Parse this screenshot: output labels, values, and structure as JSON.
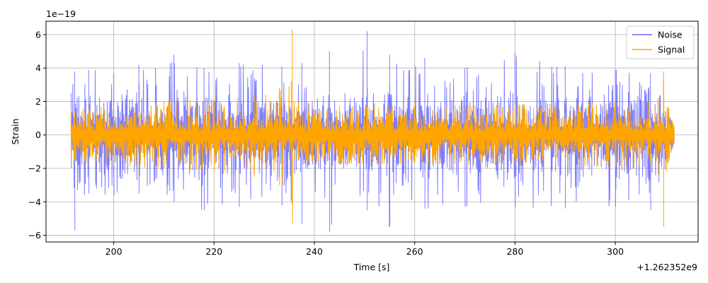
{
  "chart_data": {
    "type": "line",
    "title": "",
    "xlabel": "Time [s]",
    "ylabel": "Strain",
    "x_offset_text": "+1.262352e9",
    "y_exponent_text": "1e−19",
    "xlim": [
      186.5,
      316.5
    ],
    "ylim": [
      -6.4,
      6.8
    ],
    "x_range": [
      191.5,
      311.7
    ],
    "xticks": [
      200,
      220,
      240,
      260,
      280,
      300
    ],
    "xtick_labels": [
      "200",
      "220",
      "240",
      "260",
      "280",
      "300"
    ],
    "yticks": [
      -6,
      -4,
      -2,
      0,
      2,
      4,
      6
    ],
    "ytick_labels": [
      "−6",
      "−4",
      "−2",
      "0",
      "2",
      "4",
      "6"
    ],
    "grid": true,
    "legend_position": "top-right",
    "colors": {
      "noise": "#6666ff",
      "signal": "#ffa500",
      "grid": "#b0b0b0"
    },
    "series": [
      {
        "name": "Noise",
        "color": "#6666ff",
        "opacity": 0.85,
        "typical_amplitude": 1.4,
        "envelope": [
          {
            "x": 191.5,
            "max": 2.5,
            "min": -2.0
          },
          {
            "x": 192.2,
            "max": 3.8,
            "min": -5.7
          },
          {
            "x": 195.0,
            "max": 3.9,
            "min": -3.5
          },
          {
            "x": 200.0,
            "max": 3.7,
            "min": -3.6
          },
          {
            "x": 205.0,
            "max": 4.2,
            "min": -3.5
          },
          {
            "x": 212.0,
            "max": 4.8,
            "min": -4.0
          },
          {
            "x": 218.0,
            "max": 4.0,
            "min": -4.5
          },
          {
            "x": 225.0,
            "max": 4.3,
            "min": -4.3
          },
          {
            "x": 233.5,
            "max": 4.1,
            "min": -4.2
          },
          {
            "x": 237.5,
            "max": 4.3,
            "min": -5.3
          },
          {
            "x": 243.0,
            "max": 5.0,
            "min": -5.8
          },
          {
            "x": 250.5,
            "max": 6.2,
            "min": -4.5
          },
          {
            "x": 255.0,
            "max": 4.8,
            "min": -5.5
          },
          {
            "x": 262.0,
            "max": 4.6,
            "min": -4.4
          },
          {
            "x": 270.0,
            "max": 4.0,
            "min": -4.3
          },
          {
            "x": 280.0,
            "max": 4.9,
            "min": -4.3
          },
          {
            "x": 290.0,
            "max": 4.1,
            "min": -4.4
          },
          {
            "x": 300.0,
            "max": 3.9,
            "min": -4.3
          },
          {
            "x": 307.0,
            "max": 3.7,
            "min": -4.5
          },
          {
            "x": 311.7,
            "max": 0.5,
            "min": -0.5
          }
        ]
      },
      {
        "name": "Signal",
        "color": "#ffa500",
        "typical_amplitude": 0.9,
        "envelope": [
          {
            "x": 191.5,
            "max": 1.5,
            "min": -1.5
          },
          {
            "x": 200.0,
            "max": 1.7,
            "min": -1.8
          },
          {
            "x": 210.0,
            "max": 2.0,
            "min": -2.0
          },
          {
            "x": 220.0,
            "max": 2.1,
            "min": -2.2
          },
          {
            "x": 228.0,
            "max": 2.4,
            "min": -2.5
          },
          {
            "x": 233.0,
            "max": 2.8,
            "min": -3.0
          },
          {
            "x": 235.4,
            "max": 3.2,
            "min": -3.6
          },
          {
            "x": 235.6,
            "max": 6.3,
            "min": -5.3
          },
          {
            "x": 236.0,
            "max": 2.0,
            "min": -1.5
          },
          {
            "x": 245.0,
            "max": 1.7,
            "min": -1.7
          },
          {
            "x": 260.0,
            "max": 1.7,
            "min": -1.7
          },
          {
            "x": 280.0,
            "max": 1.8,
            "min": -1.8
          },
          {
            "x": 300.0,
            "max": 1.9,
            "min": -1.9
          },
          {
            "x": 308.5,
            "max": 2.2,
            "min": -2.3
          },
          {
            "x": 309.6,
            "max": 3.8,
            "min": -5.5
          },
          {
            "x": 310.5,
            "max": 1.7,
            "min": -1.7
          },
          {
            "x": 311.7,
            "max": 0.5,
            "min": -0.5
          }
        ]
      }
    ]
  }
}
